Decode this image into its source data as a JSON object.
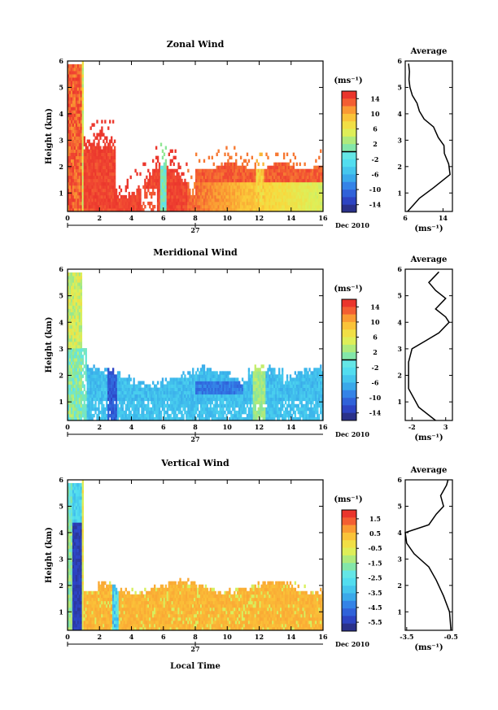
{
  "figure": {
    "date_label": "Dec 2010",
    "day_label": "27",
    "xlabel_bottom": "Local Time",
    "ylabel": "Height (km)",
    "unit_label": "(ms⁻¹)",
    "avg_title": "Average",
    "avg_unit": "(ms⁻¹)"
  },
  "chart_data": [
    {
      "type": "heatmap",
      "title": "Zonal Wind",
      "xlabel": "Local Time",
      "ylabel": "Height (km)",
      "xlim": [
        0,
        16
      ],
      "ylim": [
        0.3,
        6
      ],
      "xticks": [
        0,
        2,
        4,
        6,
        8,
        10,
        12,
        14,
        16
      ],
      "yticks": [
        1,
        2,
        3,
        4,
        5,
        6
      ],
      "colorbar": {
        "label": "(ms⁻¹)",
        "range": [
          -16,
          16
        ],
        "ticks": [
          14,
          10,
          6,
          2,
          -2,
          -6,
          -10,
          -14
        ]
      },
      "average_profile": {
        "title": "Average",
        "xlabel": "(ms⁻¹)",
        "xlim": [
          6,
          16
        ],
        "xticks": [
          6,
          14
        ],
        "points": [
          [
            6.5,
            0.3
          ],
          [
            9,
            0.8
          ],
          [
            12,
            1.2
          ],
          [
            15.5,
            1.7
          ],
          [
            15.2,
            2.1
          ],
          [
            14.3,
            2.5
          ],
          [
            14.2,
            2.8
          ],
          [
            13,
            3.1
          ],
          [
            12,
            3.5
          ],
          [
            10,
            3.8
          ],
          [
            9,
            4.1
          ],
          [
            8.5,
            4.4
          ],
          [
            7.5,
            4.7
          ],
          [
            7,
            5.0
          ],
          [
            6.8,
            5.3
          ],
          [
            6.9,
            5.6
          ],
          [
            6.7,
            5.9
          ]
        ]
      }
    },
    {
      "type": "heatmap",
      "title": "Meridional Wind",
      "xlabel": "Local Time",
      "ylabel": "Height (km)",
      "xlim": [
        0,
        16
      ],
      "ylim": [
        0.3,
        6
      ],
      "xticks": [
        0,
        2,
        4,
        6,
        8,
        10,
        12,
        14,
        16
      ],
      "yticks": [
        1,
        2,
        3,
        4,
        5,
        6
      ],
      "colorbar": {
        "label": "(ms⁻¹)",
        "range": [
          -16,
          16
        ],
        "ticks": [
          14,
          10,
          6,
          2,
          -2,
          -6,
          -10,
          -14
        ]
      },
      "average_profile": {
        "title": "Average",
        "xlabel": "(ms⁻¹)",
        "xlim": [
          -3,
          4
        ],
        "xticks": [
          -2,
          3
        ],
        "points": [
          [
            1.5,
            0.3
          ],
          [
            -1,
            0.8
          ],
          [
            -2.5,
            1.5
          ],
          [
            -2.5,
            2.5
          ],
          [
            -2,
            3.0
          ],
          [
            0,
            3.3
          ],
          [
            2,
            3.6
          ],
          [
            3.5,
            4.0
          ],
          [
            3,
            4.2
          ],
          [
            1.5,
            4.5
          ],
          [
            3,
            4.9
          ],
          [
            1.5,
            5.2
          ],
          [
            0.5,
            5.5
          ],
          [
            2,
            5.9
          ]
        ]
      }
    },
    {
      "type": "heatmap",
      "title": "Vertical Wind",
      "xlabel": "Local Time",
      "ylabel": "Height (km)",
      "xlim": [
        0,
        16
      ],
      "ylim": [
        0.3,
        6
      ],
      "xticks": [
        0,
        2,
        4,
        6,
        8,
        10,
        12,
        14,
        16
      ],
      "yticks": [
        1,
        2,
        3,
        4,
        5,
        6
      ],
      "colorbar": {
        "label": "(ms⁻¹)",
        "range": [
          -6.1,
          2.1
        ],
        "ticks": [
          1.5,
          0.5,
          -0.5,
          -1.5,
          -2.5,
          -3.5,
          -4.5,
          -5.5
        ]
      },
      "average_profile": {
        "title": "Average",
        "xlabel": "(ms⁻¹)",
        "xlim": [
          -3.6,
          -0.4
        ],
        "xticks": [
          -3.5,
          -0.5
        ],
        "points": [
          [
            -0.5,
            0.3
          ],
          [
            -0.6,
            1.0
          ],
          [
            -1,
            1.6
          ],
          [
            -1.5,
            2.2
          ],
          [
            -2,
            2.7
          ],
          [
            -3,
            3.2
          ],
          [
            -3.5,
            3.6
          ],
          [
            -3.6,
            4.0
          ],
          [
            -2,
            4.3
          ],
          [
            -1.5,
            4.7
          ],
          [
            -1,
            5.0
          ],
          [
            -1.2,
            5.4
          ],
          [
            -0.8,
            5.8
          ],
          [
            -0.7,
            6.0
          ]
        ]
      }
    }
  ]
}
